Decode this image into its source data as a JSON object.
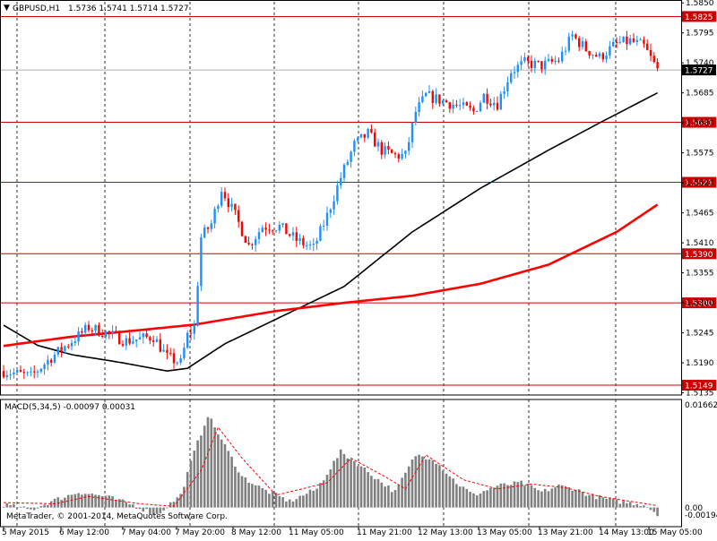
{
  "header": {
    "symbol": "GBPUSD,H1",
    "ohlc": "1.5736 1.5741 1.5714 1.5727"
  },
  "indicator": {
    "label": "MACD(5,34,5) -0.00097 0.00031",
    "axis_max": "0.01662",
    "axis_zero": "0.00",
    "axis_min": "-0.00194"
  },
  "copyright": "MetaTrader, © 2001-2014, MetaQuotes Software Corp.",
  "colors": {
    "bull": "#1e90ff",
    "bear": "#ff0000",
    "ma_fast": "#ff0000",
    "ma_slow": "#000000",
    "level": "#cc0000",
    "macd_hist": "#808080",
    "macd_signal": "#ff0000"
  },
  "chart_data": {
    "type": "candlestick",
    "title": "GBPUSD,H1",
    "y_ticks": [
      "1.5850",
      "1.5795",
      "1.5740",
      "1.5685",
      "1.5630",
      "1.5575",
      "1.5520",
      "1.5465",
      "1.5410",
      "1.5355",
      "1.5300",
      "1.5245",
      "1.5190",
      "1.5135"
    ],
    "ylim": [
      1.5131,
      1.5852
    ],
    "x_ticks": [
      "5 May 2015",
      "6 May 12:00",
      "7 May 04:00",
      "7 May 20:00",
      "8 May 12:00",
      "11 May 05:00",
      "11 May 21:00",
      "12 May 13:00",
      "13 May 05:00",
      "13 May 21:00",
      "14 May 13:00",
      "15 May 05:00"
    ],
    "levels": [
      {
        "label": "1.5825",
        "value": 1.5825
      },
      {
        "label": "1.5631",
        "value": 1.5631
      },
      {
        "label": "1.5521",
        "value": 1.5521
      },
      {
        "label": "1.5390",
        "value": 1.539
      },
      {
        "label": "1.5300",
        "value": 1.53
      },
      {
        "label": "1.5149",
        "value": 1.5149
      }
    ],
    "current_price": {
      "label": "1.5727",
      "value": 1.5727
    },
    "close_anchors": [
      [
        0,
        1.5175
      ],
      [
        8,
        1.5165
      ],
      [
        14,
        1.52
      ],
      [
        20,
        1.523
      ],
      [
        25,
        1.5255
      ],
      [
        30,
        1.5245
      ],
      [
        36,
        1.523
      ],
      [
        44,
        1.5238
      ],
      [
        48,
        1.52
      ],
      [
        52,
        1.519
      ],
      [
        54,
        1.524
      ],
      [
        56,
        1.5255
      ],
      [
        58,
        1.542
      ],
      [
        61,
        1.5445
      ],
      [
        64,
        1.551
      ],
      [
        68,
        1.546
      ],
      [
        72,
        1.5405
      ],
      [
        76,
        1.544
      ],
      [
        81,
        1.544
      ],
      [
        86,
        1.5415
      ],
      [
        91,
        1.54
      ],
      [
        95,
        1.546
      ],
      [
        99,
        1.553
      ],
      [
        103,
        1.559
      ],
      [
        107,
        1.561
      ],
      [
        111,
        1.558
      ],
      [
        115,
        1.557
      ],
      [
        118,
        1.557
      ],
      [
        121,
        1.565
      ],
      [
        124,
        1.568
      ],
      [
        129,
        1.567
      ],
      [
        134,
        1.566
      ],
      [
        138,
        1.565
      ],
      [
        141,
        1.568
      ],
      [
        145,
        1.5665
      ],
      [
        149,
        1.5725
      ],
      [
        153,
        1.574
      ],
      [
        158,
        1.5735
      ],
      [
        163,
        1.5745
      ],
      [
        167,
        1.579
      ],
      [
        171,
        1.5765
      ],
      [
        175,
        1.575
      ],
      [
        180,
        1.5775
      ],
      [
        184,
        1.578
      ],
      [
        188,
        1.577
      ],
      [
        192,
        1.5727
      ]
    ],
    "n_candles": 193,
    "ma_fast": {
      "name": "MA fast (red)",
      "anchors": [
        [
          0,
          1.5221
        ],
        [
          20,
          1.5238
        ],
        [
          40,
          1.525
        ],
        [
          56,
          1.526
        ],
        [
          80,
          1.5285
        ],
        [
          100,
          1.53
        ],
        [
          120,
          1.5313
        ],
        [
          140,
          1.5335
        ],
        [
          160,
          1.537
        ],
        [
          180,
          1.543
        ],
        [
          192,
          1.548
        ]
      ]
    },
    "ma_slow": {
      "name": "MA slow (black)",
      "anchors": [
        [
          0,
          1.5259
        ],
        [
          10,
          1.5222
        ],
        [
          20,
          1.5205
        ],
        [
          35,
          1.519
        ],
        [
          48,
          1.5175
        ],
        [
          54,
          1.518
        ],
        [
          65,
          1.5225
        ],
        [
          80,
          1.527
        ],
        [
          100,
          1.533
        ],
        [
          120,
          1.543
        ],
        [
          140,
          1.551
        ],
        [
          160,
          1.558
        ],
        [
          175,
          1.563
        ],
        [
          192,
          1.5685
        ]
      ]
    },
    "macd": {
      "hist_anchors": [
        [
          0,
          0.0005
        ],
        [
          8,
          -0.0004
        ],
        [
          15,
          0.0012
        ],
        [
          22,
          0.0025
        ],
        [
          30,
          0.0018
        ],
        [
          38,
          0.0004
        ],
        [
          45,
          -0.0012
        ],
        [
          52,
          0.002
        ],
        [
          56,
          0.009
        ],
        [
          60,
          0.015
        ],
        [
          64,
          0.011
        ],
        [
          70,
          0.005
        ],
        [
          76,
          0.003
        ],
        [
          84,
          0.001
        ],
        [
          92,
          0.003
        ],
        [
          99,
          0.009
        ],
        [
          103,
          0.0075
        ],
        [
          110,
          0.0045
        ],
        [
          115,
          0.0025
        ],
        [
          121,
          0.0085
        ],
        [
          126,
          0.008
        ],
        [
          133,
          0.004
        ],
        [
          138,
          0.002
        ],
        [
          145,
          0.0035
        ],
        [
          152,
          0.004
        ],
        [
          158,
          0.0025
        ],
        [
          163,
          0.0035
        ],
        [
          168,
          0.003
        ],
        [
          172,
          0.002
        ],
        [
          180,
          0.001
        ],
        [
          188,
          0.0005
        ],
        [
          192,
          -0.001
        ]
      ],
      "signal_anchors": [
        [
          0,
          0.0008
        ],
        [
          15,
          0.0006
        ],
        [
          25,
          0.0018
        ],
        [
          40,
          0.0006
        ],
        [
          50,
          0.0002
        ],
        [
          58,
          0.006
        ],
        [
          63,
          0.013
        ],
        [
          70,
          0.008
        ],
        [
          80,
          0.002
        ],
        [
          95,
          0.004
        ],
        [
          102,
          0.008
        ],
        [
          112,
          0.005
        ],
        [
          118,
          0.003
        ],
        [
          124,
          0.0085
        ],
        [
          135,
          0.0045
        ],
        [
          145,
          0.003
        ],
        [
          155,
          0.0038
        ],
        [
          165,
          0.0032
        ],
        [
          175,
          0.0018
        ],
        [
          192,
          0.0003
        ]
      ],
      "ylim": [
        -0.00194,
        0.01662
      ]
    }
  }
}
